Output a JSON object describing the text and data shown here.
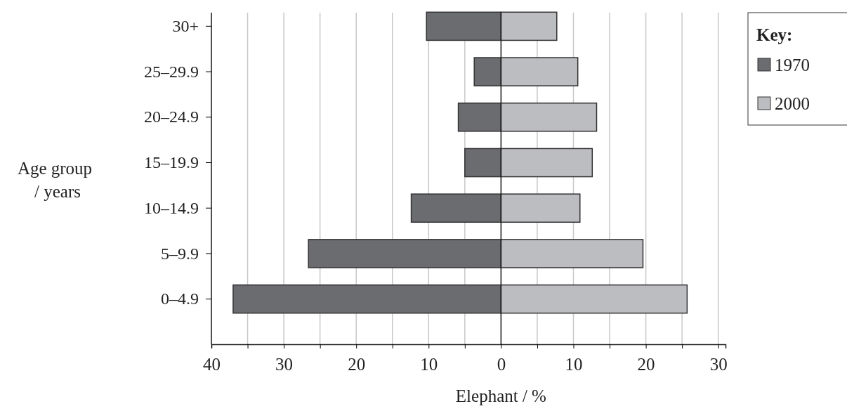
{
  "chart_data": {
    "type": "bar",
    "orientation": "horizontal",
    "stacked": true,
    "categories": [
      "30+",
      "25–29.9",
      "20–24.9",
      "15–19.9",
      "10–14.9",
      "5–9.9",
      "0–4.9"
    ],
    "series": [
      {
        "name": "1970",
        "color": "#6b6c70",
        "values": [
          -10.3,
          -3.7,
          -5.9,
          -5.0,
          -12.4,
          -26.6,
          -37.0
        ]
      },
      {
        "name": "2000",
        "color": "#bcbdc1",
        "values": [
          7.7,
          10.6,
          13.2,
          12.6,
          10.9,
          19.6,
          25.7
        ]
      }
    ],
    "xlim": [
      -40,
      31
    ],
    "xticks": [
      {
        "value": -40,
        "label": "40"
      },
      {
        "value": -35,
        "label": null
      },
      {
        "value": -30,
        "label": "30"
      },
      {
        "value": -25,
        "label": null
      },
      {
        "value": -20,
        "label": "20"
      },
      {
        "value": -15,
        "label": null
      },
      {
        "value": -10,
        "label": "10"
      },
      {
        "value": -5,
        "label": null
      },
      0,
      {
        "value": 5,
        "label": null
      },
      10,
      {
        "value": 15,
        "label": null
      },
      20,
      {
        "value": 25,
        "label": null
      },
      30
    ],
    "xlabel": "Elephant / %",
    "ylabel": "Age group / years",
    "legend_title": "Key:",
    "legend": "top right",
    "grid": "x"
  }
}
